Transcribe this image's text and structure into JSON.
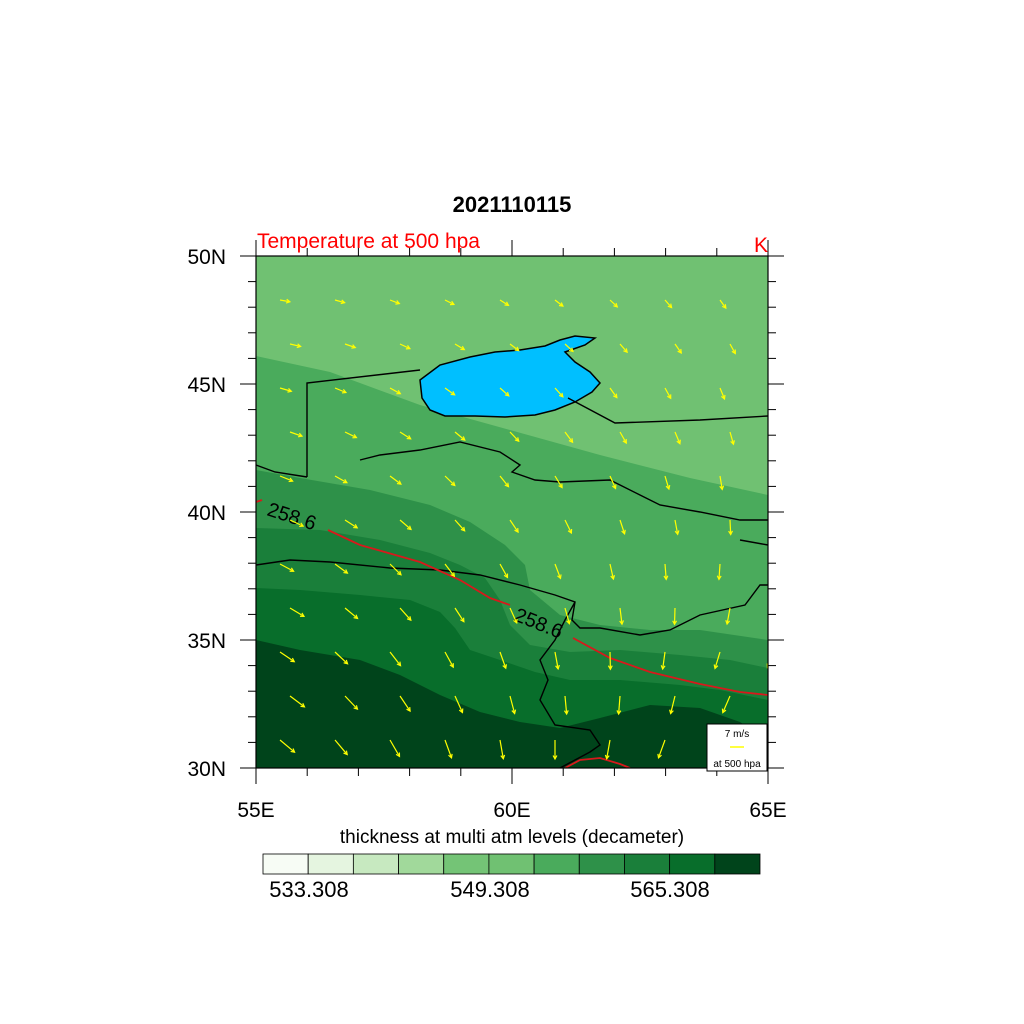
{
  "title": "2021110115",
  "left_label": "Temperature at 500 hpa",
  "right_label": "K",
  "lat_labels": [
    "50N",
    "45N",
    "40N",
    "35N",
    "30N"
  ],
  "lon_labels": [
    "55E",
    "60E",
    "65E"
  ],
  "colorbar": {
    "title": "thickness at multi atm levels (decameter)",
    "labels": [
      "533.308",
      "549.308",
      "565.308"
    ],
    "colors": [
      "#f7fcf5",
      "#e5f5e0",
      "#c7e9c0",
      "#a1d99b",
      "#74c476",
      "#70c172",
      "#4aab5c",
      "#2e9149",
      "#1a7f3a",
      "#086e2b",
      "#00441b"
    ]
  },
  "contour_labels": [
    "258.6",
    "258.6"
  ],
  "reference_vector": {
    "speed": "7 m/s",
    "level": "at 500 hpa"
  },
  "colors": {
    "lake": "#00bfff",
    "wind_vectors": "#ffff00",
    "contour": "#d7191c",
    "borders": "#000000"
  }
}
